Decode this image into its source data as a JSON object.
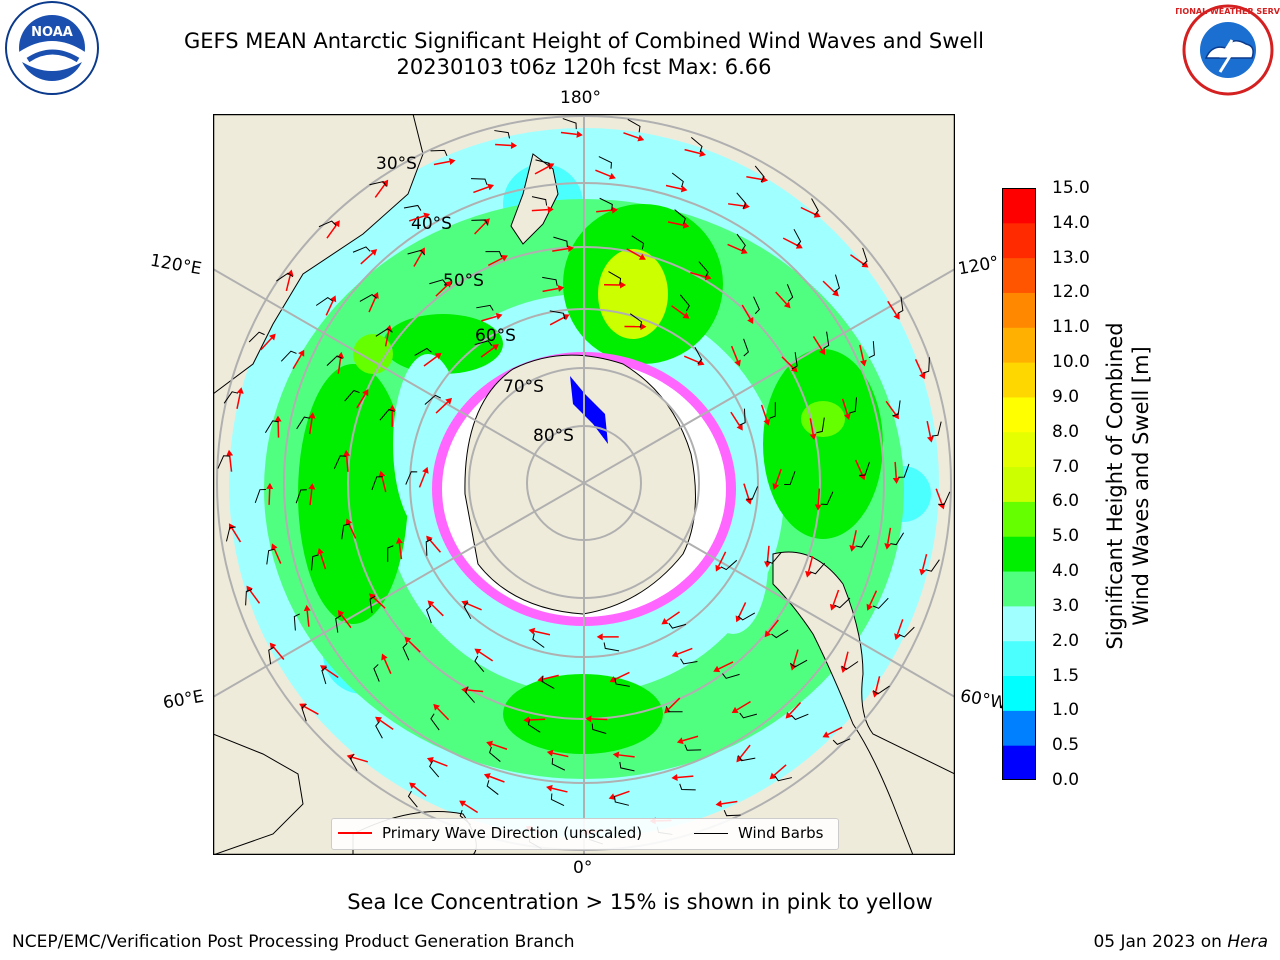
{
  "title": {
    "line1": "GEFS MEAN Antarctic Significant Height of Combined Wind Waves and Swell",
    "line2": "20230103 t06z 120h fcst   Max: 6.66"
  },
  "map": {
    "projection": "south-polar-stereographic",
    "longitude_labels": {
      "top": "180°",
      "bottom": "0°",
      "left_upper": "120°E",
      "left_lower": "60°E",
      "right_upper": "120°",
      "right_lower": "60°W"
    },
    "latitude_labels": [
      "30°S",
      "40°S",
      "50°S",
      "60°S",
      "70°S",
      "80°S"
    ],
    "land_color": "#efebdb",
    "grid_color": "#b0b0b0",
    "ice_colors": [
      "#ff66ff",
      "#ffb366",
      "#ffffff"
    ]
  },
  "colorbar": {
    "ticks": [
      "15.0",
      "14.0",
      "13.0",
      "12.0",
      "11.0",
      "10.0",
      "9.0",
      "8.0",
      "7.0",
      "6.0",
      "5.0",
      "4.0",
      "3.0",
      "2.0",
      "1.5",
      "1.0",
      "0.5",
      "0.0"
    ],
    "colors": [
      "#0000ff",
      "#0080ff",
      "#00ffff",
      "#4cffff",
      "#a0ffff",
      "#50ff80",
      "#00ee00",
      "#66ff00",
      "#ccff00",
      "#e6ff00",
      "#ffff00",
      "#ffd700",
      "#ffb000",
      "#ff8800",
      "#ff5500",
      "#ff2a00",
      "#ff0000"
    ],
    "label_line1": "Significant Height of Combined",
    "label_line2": "Wind Waves and Swell [m]"
  },
  "legend": {
    "wave_label": "Primary Wave Direction (unscaled)",
    "wind_label": "Wind Barbs",
    "wave_color": "#ff0000",
    "wind_color": "#000000"
  },
  "subcaption": "Sea Ice Concentration > 15% is shown in pink to yellow",
  "footer": {
    "left": "NCEP/EMC/Verification Post Processing Product Generation Branch",
    "right_date": "05 Jan 2023 on ",
    "right_host": "Hera"
  },
  "logos": {
    "noaa_text": "NOAA",
    "nws_text": "NATIONAL WEATHER SERVICE"
  }
}
